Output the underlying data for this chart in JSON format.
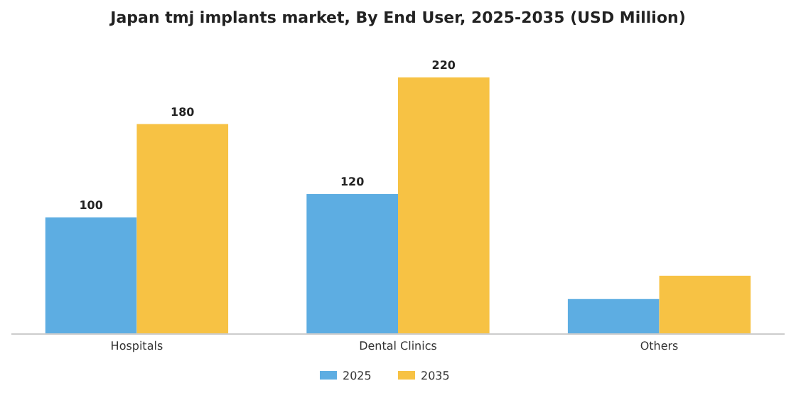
{
  "chart_data": {
    "type": "bar",
    "title": "Japan tmj implants market, By End User, 2025-2035 (USD Million)",
    "categories": [
      "Hospitals",
      "Dental Clinics",
      "Others"
    ],
    "series": [
      {
        "name": "2025",
        "color": "#5dade2",
        "values": [
          100,
          120,
          30
        ],
        "value_labels": [
          "100",
          "120",
          null
        ]
      },
      {
        "name": "2035",
        "color": "#f7c244",
        "values": [
          180,
          220,
          50
        ],
        "value_labels": [
          "180",
          "220",
          null
        ]
      }
    ],
    "legend": "bottom",
    "grid": false
  }
}
